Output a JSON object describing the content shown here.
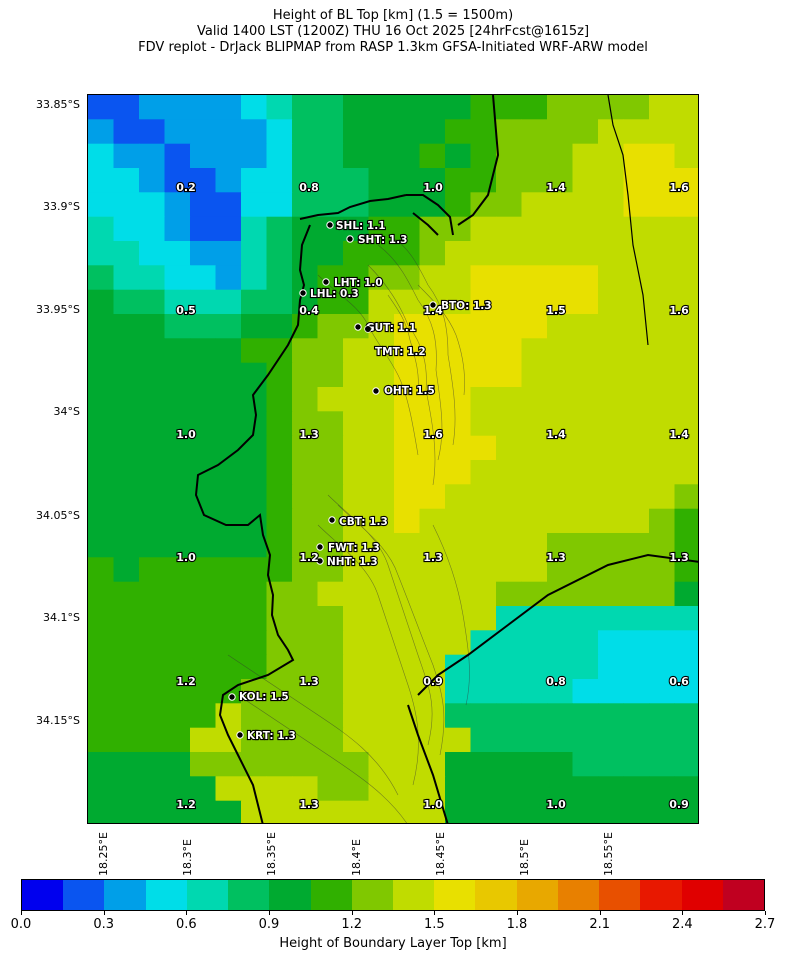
{
  "titles": {
    "line1": "Height of BL Top [km] (1.5 = 1500m)",
    "line2": "Valid 1400 LST (1200Z) THU 16 Oct 2025 [24hrFcst@1615z]",
    "line3": "FDV replot - DrJack BLIPMAP from RASP 1.3km GFSA-Initiated WRF-ARW model"
  },
  "lat_labels": [
    "33.85°S",
    "33.9°S",
    "33.95°S",
    "34°S",
    "34.05°S",
    "34.1°S",
    "34.15°S"
  ],
  "lon_labels": [
    "18.25°E",
    "18.3°E",
    "18.35°E",
    "18.4°E",
    "18.45°E",
    "18.5°E",
    "18.55°E"
  ],
  "grid_values": [
    [
      "0.2",
      "0.8",
      "1.0",
      "1.4",
      "1.6"
    ],
    [
      "0.5",
      "0.4",
      "1.4",
      "1.5",
      "1.6"
    ],
    [
      "1.0",
      "1.3",
      "1.6",
      "1.4",
      "1.4"
    ],
    [
      "1.0",
      "1.2",
      "1.3",
      "1.3",
      "1.3"
    ],
    [
      "1.2",
      "1.3",
      "0.9",
      "0.8",
      "0.6"
    ],
    [
      "1.2",
      "1.3",
      "1.0",
      "1.0",
      "0.9"
    ]
  ],
  "extra_grid_value": "1.3",
  "stations": [
    {
      "label": "SHL: 1.1"
    },
    {
      "label": "SHT: 1.3"
    },
    {
      "label": "LHT: 1.0"
    },
    {
      "label": "LHL: 0.3"
    },
    {
      "label": "BTO: 1.3"
    },
    {
      "label": "GUT: 1.1"
    },
    {
      "label": "TMT: 1.2"
    },
    {
      "label": "OHT: 1.5"
    },
    {
      "label": "CBT: 1.3"
    },
    {
      "label": "FWT: 1.3"
    },
    {
      "label": "NHT: 1.3"
    },
    {
      "label": "KOL: 1.5"
    },
    {
      "label": "KRT: 1.3"
    }
  ],
  "colorbar": {
    "colors": [
      "#0000ee",
      "#0a55f0",
      "#009fe8",
      "#00dde8",
      "#00d8b0",
      "#00c060",
      "#00aa30",
      "#30b000",
      "#80c800",
      "#c0dc00",
      "#e8e000",
      "#e8c800",
      "#e8a800",
      "#e88000",
      "#e85000",
      "#e81800",
      "#e00000",
      "#c00020"
    ],
    "ticks": [
      "0.0",
      "0.3",
      "0.6",
      "0.9",
      "1.2",
      "1.5",
      "1.8",
      "2.1",
      "2.4",
      "2.7"
    ],
    "label": "Height of Boundary Layer Top [km]"
  }
}
